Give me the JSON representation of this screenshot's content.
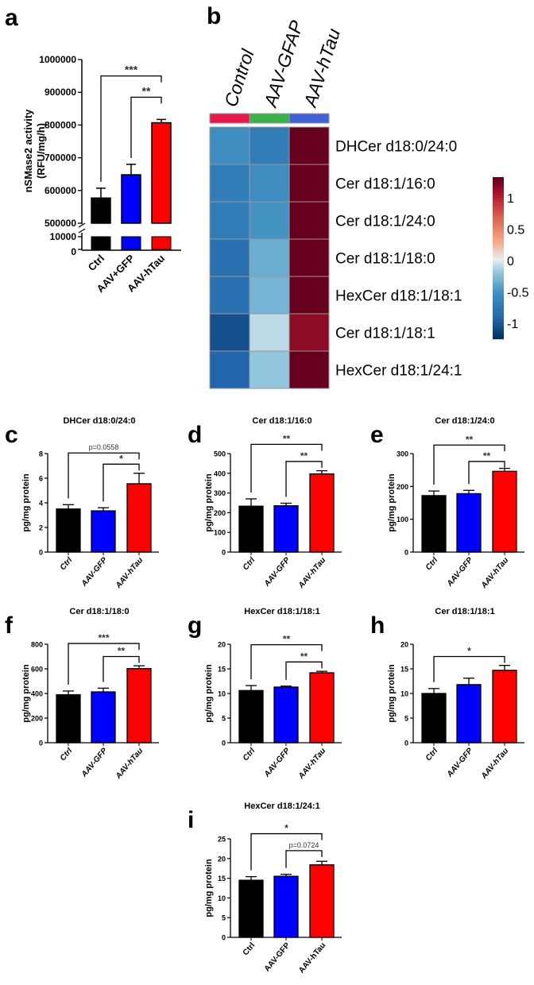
{
  "chart_data": [
    {
      "panel": "a",
      "type": "bar",
      "title": "",
      "ylabel": [
        "nSMase2 activity",
        "(RFU/mg/h)"
      ],
      "categories": [
        "Ctrl",
        "AAV+GFP",
        "AAV-hTau"
      ],
      "values": [
        577000,
        648000,
        807000
      ],
      "error_top": [
        607000,
        680000,
        817000
      ],
      "colors": [
        "#000000",
        "#0000ff",
        "#ff0000"
      ],
      "yaxis_break": [
        10000,
        500000
      ],
      "ylim": [
        0,
        1000000
      ],
      "ticks": [
        0,
        10000,
        500000,
        600000,
        700000,
        800000,
        900000,
        1000000
      ],
      "tick_labels": [
        "0",
        "10000",
        "500000",
        "600000",
        "700000",
        "800000",
        "900000",
        "1000000"
      ],
      "brackets": [
        {
          "from": 0,
          "to": 2,
          "y": 950000,
          "label": "***"
        },
        {
          "from": 1,
          "to": 2,
          "y": 885000,
          "label": "**"
        }
      ]
    },
    {
      "panel": "b",
      "type": "heatmap",
      "columns": [
        "Control",
        "AAV-GFAP",
        "AAV-hTau"
      ],
      "column_colors": [
        "#e8174b",
        "#3cb34a",
        "#4460d8"
      ],
      "rows": [
        "DHCer d18:0/24:0",
        "Cer d18:1/16:0",
        "Cer d18:1/24:0",
        "Cer d18:1/18:0",
        "HexCer d18:1/18:1",
        "Cer d18:1/18:1",
        "HexCer d18:1/24:1"
      ],
      "values": [
        [
          -0.55,
          -0.7,
          1.3
        ],
        [
          -0.7,
          -0.55,
          1.3
        ],
        [
          -0.7,
          -0.5,
          1.3
        ],
        [
          -0.8,
          -0.35,
          1.3
        ],
        [
          -0.8,
          -0.3,
          1.3
        ],
        [
          -1.05,
          -0.1,
          1.15
        ],
        [
          -0.9,
          -0.2,
          1.3
        ]
      ],
      "colorbar_range": [
        -1.25,
        1.3
      ],
      "colorbar_ticks": [
        1,
        0.5,
        0,
        -0.5,
        -1
      ],
      "colorbar_tick_labels": [
        "1",
        "0.5",
        "0",
        "-0.5",
        "-1"
      ]
    },
    {
      "panel": "c",
      "type": "bar",
      "title": "DHCer d18:0/24:0",
      "ylabel": [
        "pg/mg protein"
      ],
      "categories": [
        "Ctrl",
        "AAV-GFP",
        "AAV-hTau"
      ],
      "values": [
        3.5,
        3.35,
        5.55
      ],
      "error_top": [
        3.85,
        3.6,
        6.4
      ],
      "colors": [
        "#000000",
        "#0000ff",
        "#ff0000"
      ],
      "ylim": [
        0,
        8
      ],
      "ticks": [
        0,
        2,
        4,
        6,
        8
      ],
      "tick_labels": [
        "0",
        "2",
        "4",
        "6",
        "8"
      ],
      "brackets": [
        {
          "from": 0,
          "to": 2,
          "y": 8.05,
          "label": "p=0.0558"
        },
        {
          "from": 1,
          "to": 2,
          "y": 7.14,
          "label": "*"
        }
      ]
    },
    {
      "panel": "d",
      "type": "bar",
      "title": "Cer d18:1/16:0",
      "ylabel": [
        "pg/mg protein"
      ],
      "categories": [
        "Ctrl",
        "AAV-GFP",
        "AAV-hTau"
      ],
      "values": [
        233,
        235,
        397
      ],
      "error_top": [
        270,
        248,
        413
      ],
      "colors": [
        "#000000",
        "#0000ff",
        "#ff0000"
      ],
      "ylim": [
        0,
        500
      ],
      "ticks": [
        0,
        100,
        200,
        300,
        400,
        500
      ],
      "tick_labels": [
        "0",
        "100",
        "200",
        "300",
        "400",
        "500"
      ],
      "brackets": [
        {
          "from": 0,
          "to": 2,
          "y": 547,
          "label": "**"
        },
        {
          "from": 1,
          "to": 2,
          "y": 460,
          "label": "**"
        }
      ]
    },
    {
      "panel": "e",
      "type": "bar",
      "title": "Cer d18:1/24:0",
      "ylabel": [
        "pg/mg protein"
      ],
      "categories": [
        "Ctrl",
        "AAV-GFP",
        "AAV-hTau"
      ],
      "values": [
        172,
        178,
        246
      ],
      "error_top": [
        186,
        188,
        255
      ],
      "colors": [
        "#000000",
        "#0000ff",
        "#ff0000"
      ],
      "ylim": [
        0,
        300
      ],
      "ticks": [
        0,
        100,
        200,
        300
      ],
      "tick_labels": [
        "0",
        "100",
        "200",
        "300"
      ],
      "brackets": [
        {
          "from": 0,
          "to": 2,
          "y": 326,
          "label": "**"
        },
        {
          "from": 1,
          "to": 2,
          "y": 276,
          "label": "**"
        }
      ]
    },
    {
      "panel": "f",
      "type": "bar",
      "title": "Cer d18:1/18:0",
      "ylabel": [
        "pg/mg protein"
      ],
      "categories": [
        "Ctrl",
        "AAV-GFP",
        "AAV-hTau"
      ],
      "values": [
        390,
        413,
        602
      ],
      "error_top": [
        420,
        443,
        625
      ],
      "colors": [
        "#000000",
        "#0000ff",
        "#ff0000"
      ],
      "ylim": [
        0,
        800
      ],
      "ticks": [
        0,
        200,
        400,
        600,
        800
      ],
      "tick_labels": [
        "0",
        "200",
        "400",
        "600",
        "800"
      ],
      "brackets": [
        {
          "from": 0,
          "to": 2,
          "y": 806,
          "label": "***"
        },
        {
          "from": 1,
          "to": 2,
          "y": 700,
          "label": "**"
        }
      ]
    },
    {
      "panel": "g",
      "type": "bar",
      "title": "HexCer d18:1/18:1",
      "ylabel": [
        "pg/mg protein"
      ],
      "categories": [
        "Ctrl",
        "AAV-GFP",
        "AAV-hTau"
      ],
      "values": [
        10.6,
        11.3,
        14.2
      ],
      "error_top": [
        11.6,
        11.5,
        14.5
      ],
      "colors": [
        "#000000",
        "#0000ff",
        "#ff0000"
      ],
      "ylim": [
        0,
        20
      ],
      "ticks": [
        0,
        5,
        10,
        15,
        20
      ],
      "tick_labels": [
        "0",
        "5",
        "10",
        "15",
        "20"
      ],
      "brackets": [
        {
          "from": 0,
          "to": 2,
          "y": 19.9,
          "label": "**"
        },
        {
          "from": 1,
          "to": 2,
          "y": 16.4,
          "label": "**"
        }
      ]
    },
    {
      "panel": "h",
      "type": "bar",
      "title": "Cer d18:1/18:1",
      "ylabel": [
        "pg/mg protein"
      ],
      "categories": [
        "Ctrl",
        "AAV-GFP",
        "AAV-hTau"
      ],
      "values": [
        10.0,
        11.8,
        14.7
      ],
      "error_top": [
        11.0,
        13.1,
        15.7
      ],
      "colors": [
        "#000000",
        "#0000ff",
        "#ff0000"
      ],
      "ylim": [
        0,
        20
      ],
      "ticks": [
        0,
        5,
        10,
        15,
        20
      ],
      "tick_labels": [
        "0",
        "5",
        "10",
        "15",
        "20"
      ],
      "brackets": [
        {
          "from": 0,
          "to": 2,
          "y": 17.5,
          "label": "*"
        }
      ]
    },
    {
      "panel": "i",
      "type": "bar",
      "title": "HexCer d18:1/24:1",
      "ylabel": [
        "pg/mg protein"
      ],
      "categories": [
        "Ctrl",
        "AAV-GFP",
        "AAV-hTau"
      ],
      "values": [
        14.5,
        15.5,
        18.4
      ],
      "error_top": [
        15.4,
        16.0,
        19.3
      ],
      "colors": [
        "#000000",
        "#0000ff",
        "#ff0000"
      ],
      "ylim": [
        0,
        25
      ],
      "ticks": [
        0,
        5,
        10,
        15,
        20,
        25
      ],
      "tick_labels": [
        "0",
        "5",
        "10",
        "15",
        "20",
        "25"
      ],
      "brackets": [
        {
          "from": 0,
          "to": 2,
          "y": 26.3,
          "label": "*"
        },
        {
          "from": 1,
          "to": 2,
          "y": 22,
          "label": "p=0.0724"
        }
      ]
    }
  ]
}
